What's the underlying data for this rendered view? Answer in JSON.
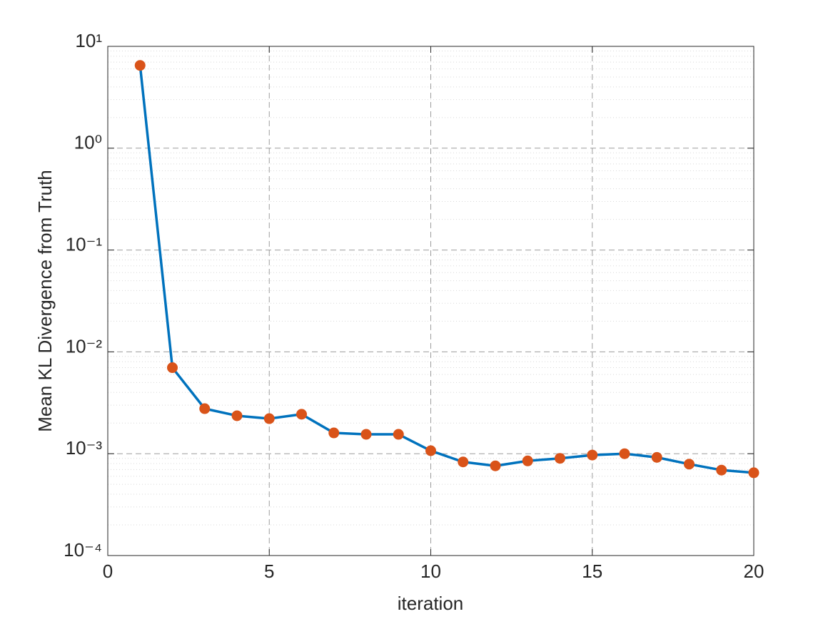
{
  "chart_data": {
    "type": "line",
    "x_label": "iteration",
    "y_label": "Mean KL Divergence from Truth",
    "x": [
      1,
      2,
      3,
      4,
      5,
      6,
      7,
      8,
      9,
      10,
      11,
      12,
      13,
      14,
      15,
      16,
      17,
      18,
      19,
      20
    ],
    "values": [
      6.5,
      0.007,
      0.00277,
      0.00236,
      0.00221,
      0.00244,
      0.0016,
      0.00155,
      0.00155,
      0.00107,
      0.00083,
      0.00076,
      0.00085,
      0.0009,
      0.00097,
      0.001,
      0.00092,
      0.00079,
      0.00069,
      0.00065
    ],
    "color": "#0072bd",
    "marker_color": "#d95319",
    "xlim": [
      0,
      20
    ],
    "xticks": [
      0,
      5,
      10,
      15,
      20
    ],
    "ylim": [
      0.0001,
      10
    ],
    "log_y": true,
    "grid": true,
    "yticks": [
      {
        "value": 0.0001,
        "label": "10⁻⁴"
      },
      {
        "value": 0.001,
        "label": "10⁻³"
      },
      {
        "value": 0.01,
        "label": "10⁻²"
      },
      {
        "value": 0.1,
        "label": "10⁻¹"
      },
      {
        "value": 1,
        "label": "10⁰"
      },
      {
        "value": 10,
        "label": "10¹"
      }
    ]
  }
}
